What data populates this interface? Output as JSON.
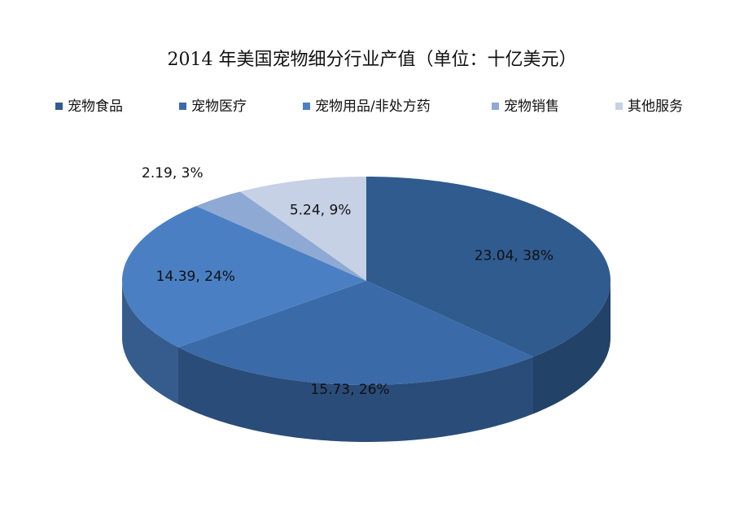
{
  "chart_data": {
    "type": "pie3d",
    "title": "2014 年美国宠物细分行业产值（单位：十亿美元）",
    "series": [
      {
        "name": "宠物食品",
        "color": "#2f5b8f",
        "values": [
          23.04
        ],
        "value_labels": [
          "23.04, 38%"
        ]
      },
      {
        "name": "宠物医疗",
        "color": "#3a6aa8",
        "values": [
          15.73
        ],
        "value_labels": [
          "15.73, 26%"
        ]
      },
      {
        "name": "宠物用品/非处方药",
        "color": "#4a80c3",
        "values": [
          14.39
        ],
        "value_labels": [
          "14.39, 24%"
        ]
      },
      {
        "name": "宠物销售",
        "color": "#8ea9d3",
        "values": [
          2.19
        ],
        "value_labels": [
          "2.19, 3%"
        ]
      },
      {
        "name": "其他服务",
        "color": "#c6d1e5",
        "values": [
          5.24
        ],
        "value_labels": [
          "5.24, 9%"
        ]
      }
    ]
  }
}
